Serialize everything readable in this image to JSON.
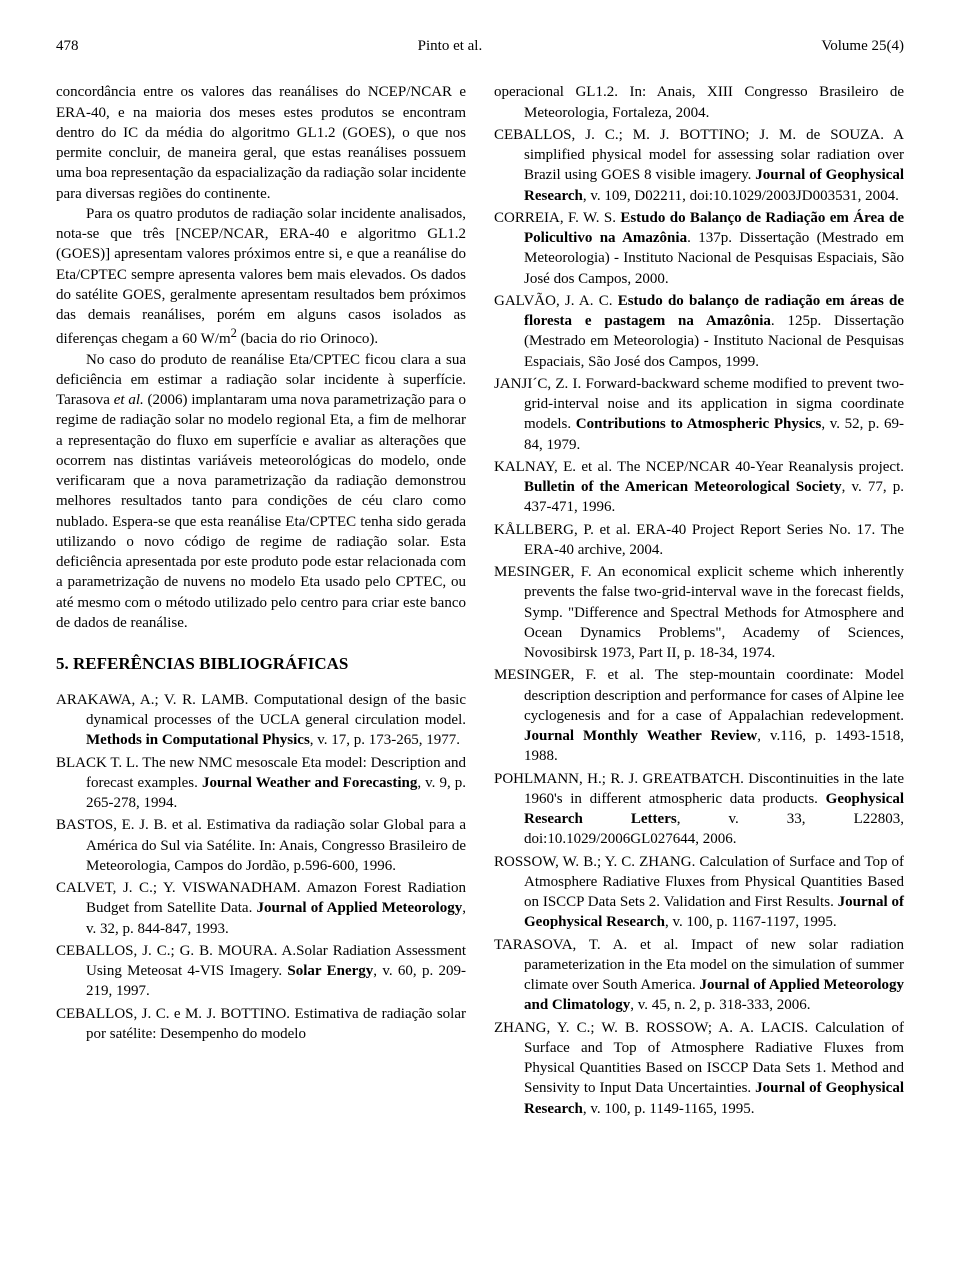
{
  "header": {
    "page_number": "478",
    "authors": "Pinto et al.",
    "volume": "Volume 25(4)"
  },
  "left": {
    "p1": "concordância entre os valores das reanálises do NCEP/NCAR e ERA-40, e na maioria dos meses estes produtos se encontram dentro do IC da média do algoritmo GL1.2 (GOES), o que nos permite concluir, de maneira geral, que estas reanálises possuem uma boa representação da espacialização da radiação solar incidente para diversas regiões do continente.",
    "p2a": "Para os quatro produtos de radiação solar incidente analisados, nota-se que três [NCEP/NCAR, ERA-40 e algoritmo GL1.2 (GOES)] apresentam valores próximos entre si, e que a reanálise do Eta/CPTEC sempre apresenta valores bem mais elevados. Os dados do satélite GOES, geralmente apresentam resultados bem próximos das demais reanálises, porém em alguns casos isolados as diferenças chegam a 60 W/m",
    "p2sup": "2",
    "p2b": " (bacia do rio Orinoco).",
    "p3a": "No caso do produto de reanálise Eta/CPTEC ficou clara a sua deficiência em estimar a radiação solar incidente à superfície. Tarasova ",
    "p3i": "et al.",
    "p3b": " (2006) implantaram uma nova parametrização para o regime de radiação solar no modelo regional Eta, a fim de melhorar a representação do fluxo em superfície e avaliar as alterações que ocorrem nas distintas variáveis meteorológicas do modelo, onde verificaram que a nova parametrização da radiação demonstrou melhores resultados tanto para condições de céu claro como nublado. Espera-se que esta reanálise Eta/CPTEC tenha sido gerada utilizando o novo código de regime de radiação solar. Esta deficiência apresentada por este produto pode estar relacionada com a parametrização de nuvens no modelo Eta usado pelo CPTEC, ou até mesmo com o método utilizado pelo centro para criar este banco de dados de reanálise.",
    "section": "5. REFERÊNCIAS BIBLIOGRÁFICAS",
    "refs": {
      "r1a": "ARAKAWA, A.; V. R. LAMB. Computational design of the basic dynamical processes of the UCLA general circulation model. ",
      "r1b": "Methods in Computational Physics",
      "r1c": ", v. 17, p. 173-265, 1977.",
      "r2a": "BLACK T. L. The new NMC mesoscale Eta model: Description and forecast examples. ",
      "r2b": "Journal Weather and Forecasting",
      "r2c": ", v. 9, p. 265-278, 1994.",
      "r3a": "BASTOS, E. J. B. et al. Estimativa da radiação solar Global para a América do Sul via Satélite. In: Anais, Congresso Brasileiro de Meteorologia, Campos do Jordão, p.596-600, 1996.",
      "r4a": "CALVET, J. C.; Y. VISWANADHAM. Amazon Forest Radiation Budget from Satellite Data. ",
      "r4b": "Journal of Applied Meteorology",
      "r4c": ", v. 32, p. 844-847, 1993.",
      "r5a": "CEBALLOS, J. C.; G. B. MOURA. A.Solar Radiation Assessment Using Meteosat 4-VIS Imagery. ",
      "r5b": "Solar Energy",
      "r5c": ", v. 60, p. 209-219, 1997.",
      "r6a": "CEBALLOS, J. C. e M. J. BOTTINO. Estimativa de radiação solar por satélite: Desempenho do modelo"
    }
  },
  "right": {
    "r6b": "operacional GL1.2. In: Anais, XIII Congresso Brasileiro de Meteorologia, Fortaleza, 2004.",
    "r7a": "CEBALLOS, J. C.; M. J. BOTTINO; J. M. de SOUZA. A simplified physical model for assessing solar radiation over Brazil using GOES 8 visible imagery. ",
    "r7b": "Journal of Geophysical Research",
    "r7c": ", v. 109, D02211, doi:10.1029/2003JD003531, 2004.",
    "r8a": "CORREIA, F. W. S. ",
    "r8b": "Estudo do Balanço de Radiação em Área de Policultivo na Amazônia",
    "r8c": ". 137p. Dissertação (Mestrado em Meteorologia) - Instituto Nacional de Pesquisas Espaciais, São José dos Campos, 2000.",
    "r9a": "GALVÃO, J. A. C. ",
    "r9b": "Estudo do balanço de radiação em áreas de floresta e pastagem na Amazônia",
    "r9c": ". 125p. Dissertação (Mestrado em Meteorologia) - Instituto Nacional de Pesquisas Espaciais, São José dos Campos, 1999.",
    "r10a": "JANJI´C, Z. I. Forward-backward scheme modified to prevent two-grid-interval noise and its application in sigma coordinate models. ",
    "r10b": "Contributions to Atmospheric Physics",
    "r10c": ", v. 52, p. 69-84, 1979.",
    "r11a": "KALNAY, E. et al. The NCEP/NCAR 40-Year Reanalysis project. ",
    "r11b": "Bulletin of the American Meteorological Society",
    "r11c": ", v. 77, p. 437-471, 1996.",
    "r12a": "KÅLLBERG, P. et al. ERA-40 Project Report Series No. 17. The ERA-40 archive, 2004.",
    "r13a": "MESINGER, F. An economical explicit scheme which inherently prevents the false two-grid-interval wave in the forecast fields, Symp. \"Difference and Spectral Methods for Atmosphere and Ocean Dynamics Problems\", Academy of Sciences, Novosibirsk 1973, Part II, p. 18-34, 1974.",
    "r14a": "MESINGER, F. et al. The step-mountain coordinate: Model description description and performance for cases of Alpine lee cyclogenesis and for a case of Appalachian redevelopment. ",
    "r14b": "Journal Monthly Weather Review",
    "r14c": ", v.116, p. 1493-1518, 1988.",
    "r15a": "POHLMANN, H.; R. J. GREATBATCH. Discontinuities in the late 1960's in different atmospheric data products. ",
    "r15b": "Geophysical Research Letters",
    "r15c": ", v. 33, L22803, doi:10.1029/2006GL027644, 2006.",
    "r16a": "ROSSOW, W. B.; Y. C. ZHANG. Calculation of Surface and Top of Atmosphere Radiative Fluxes from Physical Quantities Based on ISCCP Data Sets 2. Validation and First Results. ",
    "r16b": "Journal of Geophysical Research",
    "r16c": ", v. 100, p. 1167-1197, 1995.",
    "r17a": "TARASOVA, T. A. et al. Impact of new solar radiation parameterization in the Eta model on the simulation of summer climate over South America. ",
    "r17b": "Journal of Applied Meteorology and Climatology",
    "r17c": ", v. 45, n. 2, p. 318-333, 2006.",
    "r18a": "ZHANG, Y. C.; W. B. ROSSOW; A. A. LACIS. Calculation of Surface and Top of Atmosphere Radiative Fluxes from Physical Quantities Based on ISCCP Data Sets 1. Method and Sensivity to Input Data Uncertainties. ",
    "r18b": "Journal of Geophysical Research",
    "r18c": ", v. 100, p. 1149-1165, 1995."
  }
}
